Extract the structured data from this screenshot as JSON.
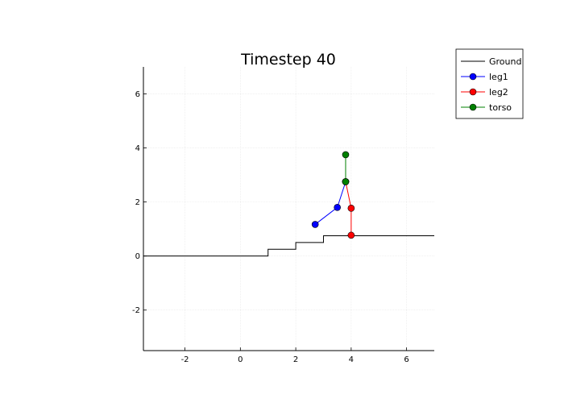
{
  "chart_data": {
    "type": "line",
    "title": "Timestep 40",
    "xlabel": "",
    "ylabel": "",
    "xlim": [
      -3.5,
      7
    ],
    "ylim": [
      -3.5,
      7
    ],
    "x_ticks": [
      -2,
      0,
      2,
      4,
      6
    ],
    "y_ticks": [
      -2,
      0,
      2,
      4,
      6
    ],
    "x_tick_labels": [
      "-2",
      "0",
      "2",
      "4",
      "6"
    ],
    "y_tick_labels": [
      "-2",
      "0",
      "2",
      "4",
      "6"
    ],
    "grid": true,
    "legend_position": "top-right outside",
    "series": [
      {
        "name": "Ground",
        "color": "#000000",
        "marker": false,
        "step": true,
        "x": [
          -3.5,
          1,
          1,
          2,
          2,
          3,
          3,
          7
        ],
        "y": [
          0,
          0,
          0.25,
          0.25,
          0.5,
          0.5,
          0.75,
          0.75
        ]
      },
      {
        "name": "leg1",
        "color": "#0000ff",
        "marker": true,
        "x": [
          2.7,
          3.5,
          3.8
        ],
        "y": [
          1.17,
          1.8,
          2.75
        ]
      },
      {
        "name": "leg2",
        "color": "#ff0000",
        "marker": true,
        "x": [
          3.8,
          4.0,
          4.0
        ],
        "y": [
          2.75,
          1.77,
          0.77
        ]
      },
      {
        "name": "torso",
        "color": "#008000",
        "marker": true,
        "x": [
          3.8,
          3.8
        ],
        "y": [
          2.75,
          3.75
        ]
      }
    ]
  }
}
